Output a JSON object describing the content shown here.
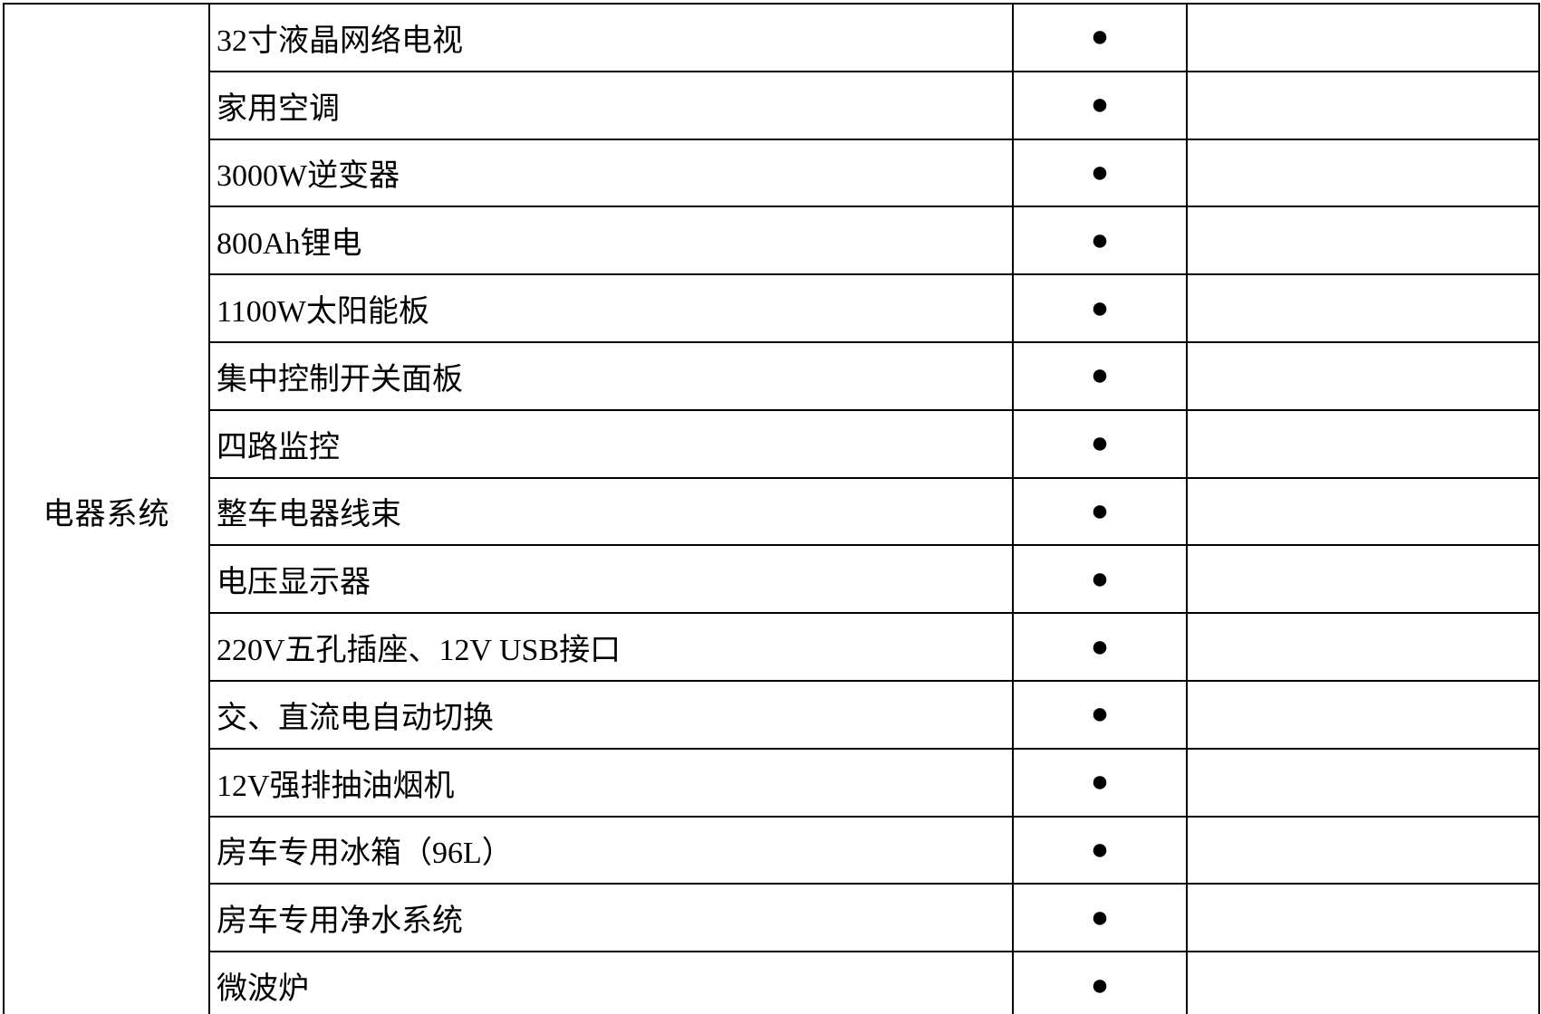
{
  "colors": {
    "background": "#ffffff",
    "border": "#000000",
    "text": "#000000",
    "marker": "#000000"
  },
  "table": {
    "category_label": "电器系统",
    "standard_marker": "●",
    "rows": [
      {
        "item": "32寸液晶网络电视",
        "standard": "●",
        "optional": ""
      },
      {
        "item": "家用空调",
        "standard": "●",
        "optional": ""
      },
      {
        "item": "3000W逆变器",
        "standard": "●",
        "optional": ""
      },
      {
        "item": "800Ah锂电",
        "standard": "●",
        "optional": ""
      },
      {
        "item": "1100W太阳能板",
        "standard": "●",
        "optional": ""
      },
      {
        "item": "集中控制开关面板",
        "standard": "●",
        "optional": ""
      },
      {
        "item": "四路监控",
        "standard": "●",
        "optional": ""
      },
      {
        "item": "整车电器线束",
        "standard": "●",
        "optional": ""
      },
      {
        "item": "电压显示器",
        "standard": "●",
        "optional": ""
      },
      {
        "item": "220V五孔插座、12V USB接口",
        "standard": "●",
        "optional": ""
      },
      {
        "item": "交、直流电自动切换",
        "standard": "●",
        "optional": ""
      },
      {
        "item": "12V强排抽油烟机",
        "standard": "●",
        "optional": ""
      },
      {
        "item": "房车专用冰箱（96L）",
        "standard": "●",
        "optional": ""
      },
      {
        "item": "房车专用净水系统",
        "standard": "●",
        "optional": ""
      },
      {
        "item": "微波炉",
        "standard": "●",
        "optional": ""
      }
    ]
  }
}
